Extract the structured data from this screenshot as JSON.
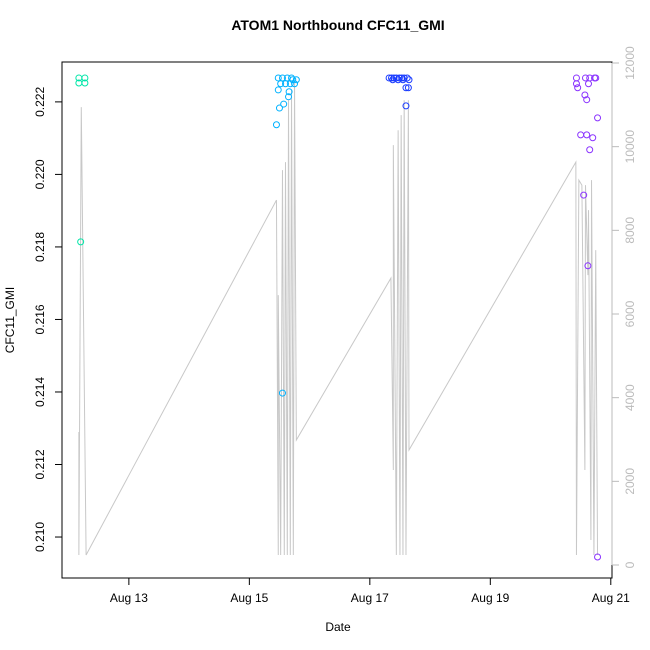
{
  "chart_data": {
    "type": "scatter",
    "title": "ATOM1 Northbound CFC11_GMI",
    "x_label": "Date",
    "y_label": "CFC11_GMI",
    "xlim": [
      11.89,
      21.02
    ],
    "ylim": [
      0.20887,
      0.2231
    ],
    "y2lim": [
      -311,
      12024
    ],
    "xticks": [
      {
        "value": 13,
        "label": "Aug 13"
      },
      {
        "value": 15,
        "label": "Aug 15"
      },
      {
        "value": 17,
        "label": "Aug 17"
      },
      {
        "value": 19,
        "label": "Aug 19"
      },
      {
        "value": 21,
        "label": "Aug 21"
      }
    ],
    "yticks": [
      {
        "value": 0.21,
        "label": "0.210"
      },
      0.212,
      0.214,
      0.216,
      0.218,
      {
        "value": 0.22,
        "label": "0.220"
      },
      0.222
    ],
    "y2ticks": [
      0,
      2000,
      4000,
      6000,
      8000,
      10000,
      12000
    ],
    "y2_color": "#bbbbbb",
    "series": [
      {
        "type": "line",
        "axis": "y2",
        "color": "#c8c8c8",
        "x": [
          12.17,
          12.17,
          12.21,
          12.29,
          15.45,
          15.48,
          15.48,
          15.52,
          15.55,
          15.58,
          15.6,
          15.63,
          15.65,
          15.68,
          15.7,
          15.73,
          15.75,
          15.78,
          17.35,
          17.39,
          17.39,
          17.44,
          17.47,
          17.5,
          17.52,
          17.55,
          17.57,
          17.6,
          17.64,
          17.65,
          20.42,
          20.43,
          20.47,
          20.52,
          20.57,
          20.58,
          20.62,
          20.63,
          20.67,
          20.68,
          20.72,
          20.75,
          20.78
        ],
        "values": [
          3178,
          239,
          10944,
          239,
          8722,
          239,
          6452,
          239,
          9438,
          239,
          9630,
          239,
          11111,
          239,
          11350,
          239,
          11589,
          2987,
          6858,
          2270,
          10036,
          239,
          10394,
          239,
          10753,
          239,
          11111,
          239,
          11111,
          2748,
          9630,
          239,
          9200,
          9080,
          2270,
          9080,
          6930,
          8483,
          597,
          9200,
          239,
          7527,
          239
        ]
      },
      {
        "type": "scatter",
        "color": "#00e6a8",
        "x": [
          12.17,
          12.27,
          12.17,
          12.27,
          12.2
        ],
        "values": [
          0.22266,
          0.22266,
          0.22252,
          0.22252,
          0.21814
        ]
      },
      {
        "type": "scatter",
        "color": "#00b2ff",
        "x": [
          15.48,
          15.55,
          15.63,
          15.7,
          15.78,
          15.52,
          15.6,
          15.68,
          15.75,
          15.48,
          15.66,
          15.65,
          15.57,
          15.5,
          15.45,
          15.55,
          15.72
        ],
        "values": [
          0.22266,
          0.22266,
          0.22266,
          0.22266,
          0.22261,
          0.2225,
          0.2225,
          0.2225,
          0.2225,
          0.22233,
          0.22228,
          0.22214,
          0.22194,
          0.22183,
          0.22137,
          0.21397,
          0.22261
        ]
      },
      {
        "type": "scatter",
        "color": "#1a3cff",
        "x": [
          17.32,
          17.36,
          17.4,
          17.44,
          17.49,
          17.53,
          17.57,
          17.62,
          17.65,
          17.38,
          17.47,
          17.55,
          17.6,
          17.64,
          17.6
        ],
        "values": [
          0.22266,
          0.22266,
          0.22266,
          0.22266,
          0.22266,
          0.22266,
          0.22266,
          0.22266,
          0.22261,
          0.22261,
          0.22261,
          0.22261,
          0.22239,
          0.22239,
          0.22189
        ]
      },
      {
        "type": "scatter",
        "color": "#8a33ff",
        "x": [
          20.43,
          20.43,
          20.45,
          20.58,
          20.63,
          20.65,
          20.73,
          20.75,
          20.57,
          20.6,
          20.5,
          20.6,
          20.65,
          20.7,
          20.78,
          20.55,
          20.62,
          20.78
        ],
        "values": [
          0.22266,
          0.2225,
          0.22239,
          0.22266,
          0.2225,
          0.22266,
          0.22266,
          0.22266,
          0.22219,
          0.22206,
          0.22109,
          0.22109,
          0.22068,
          0.22101,
          0.22156,
          0.21943,
          0.21748,
          0.20945
        ]
      }
    ]
  }
}
